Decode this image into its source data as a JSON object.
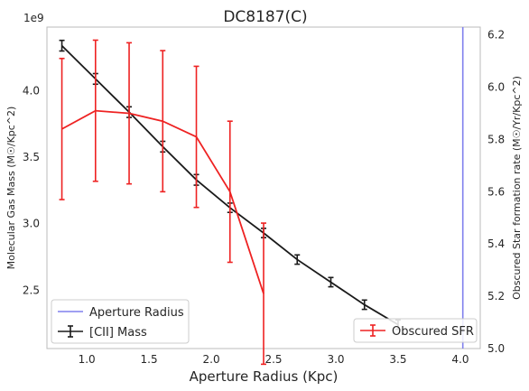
{
  "chart_data": {
    "type": "line",
    "title": "DC8187(C)",
    "xlabel": "Aperture Radius (Kpc)",
    "ylabel_left": "Molecular Gas Mass (M☉/Kpc^2)",
    "ylabel_right": "Obscured Star formation rate (M☉/Yr/Kpc^2)",
    "left_axis_offset_label": "1e9",
    "xlim": [
      0.68,
      4.16
    ],
    "ylim_left": [
      2.06,
      4.48
    ],
    "ylim_right": [
      5.0,
      6.23
    ],
    "x_ticks": [
      1.0,
      1.5,
      2.0,
      2.5,
      3.0,
      3.5,
      4.0
    ],
    "x_tick_labels": [
      "1.0",
      "1.5",
      "2.0",
      "2.5",
      "3.0",
      "3.5",
      "4.0"
    ],
    "y_left_ticks": [
      2.5,
      3.0,
      3.5,
      4.0
    ],
    "y_left_tick_labels": [
      "2.5",
      "3.0",
      "3.5",
      "4.0"
    ],
    "y_right_ticks": [
      5.0,
      5.2,
      5.4,
      5.6,
      5.8,
      6.0,
      6.2
    ],
    "y_right_tick_labels": [
      "5.0",
      "5.2",
      "5.4",
      "5.6",
      "5.8",
      "6.0",
      "6.2"
    ],
    "aperture_radius": 4.02,
    "series": [
      {
        "name": "[CII] Mass",
        "axis": "left",
        "color": "#1a1a1a",
        "x": [
          0.8,
          1.07,
          1.34,
          1.61,
          1.88,
          2.15,
          2.42,
          2.69,
          2.96,
          3.23,
          3.5
        ],
        "y": [
          4.34,
          4.09,
          3.84,
          3.58,
          3.33,
          3.12,
          2.93,
          2.73,
          2.56,
          2.39,
          2.24
        ],
        "yerr": [
          0.04,
          0.04,
          0.04,
          0.04,
          0.04,
          0.035,
          0.035,
          0.035,
          0.035,
          0.035,
          0.035
        ]
      },
      {
        "name": "Obscured SFR",
        "axis": "right",
        "color": "#ee2222",
        "x": [
          0.8,
          1.07,
          1.34,
          1.61,
          1.88,
          2.15,
          2.42
        ],
        "y": [
          5.84,
          5.91,
          5.9,
          5.87,
          5.81,
          5.6,
          5.21
        ],
        "yerr": [
          0.27,
          0.27,
          0.27,
          0.27,
          0.27,
          0.27,
          0.27
        ]
      }
    ],
    "legend_left": [
      {
        "label": "Aperture Radius",
        "color": "#8080ee"
      },
      {
        "label": "[CII] Mass",
        "color": "#1a1a1a"
      }
    ],
    "legend_right": [
      {
        "label": "Obscured SFR",
        "color": "#ee2222"
      }
    ],
    "grid": false
  }
}
